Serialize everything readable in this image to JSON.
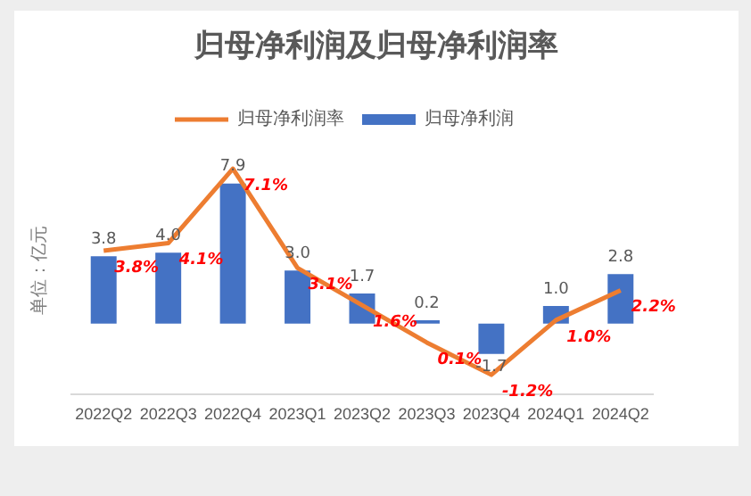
{
  "chart_data": {
    "type": "bar",
    "title": "归母净利润及归母净利润率",
    "ylabel": "单位：亿元",
    "categories": [
      "2022Q2",
      "2022Q3",
      "2022Q4",
      "2023Q1",
      "2023Q2",
      "2023Q3",
      "2023Q4",
      "2024Q1",
      "2024Q2"
    ],
    "series": [
      {
        "name": "归母净利润",
        "color": "#4472c4",
        "values": [
          3.8,
          4.0,
          7.9,
          3.0,
          1.7,
          0.2,
          -1.7,
          1.0,
          2.8
        ],
        "value_labels": [
          "3.8",
          "4.0",
          "7.9",
          "3.0",
          "1.7",
          "0.2",
          "-1.7",
          "1.0",
          "2.8"
        ]
      },
      {
        "name": "归母净利润率",
        "type": "line",
        "axis": "y2",
        "color": "#ed7d31",
        "values": [
          3.8,
          4.1,
          7.1,
          3.1,
          1.6,
          0.1,
          -1.2,
          1.0,
          2.2
        ],
        "value_labels": [
          "3.8%",
          "4.1%",
          "7.1%",
          "3.1%",
          "1.6%",
          "0.1%",
          "-1.2%",
          "1.0%",
          "2.2%"
        ]
      }
    ],
    "data_labels": true,
    "legend": "top",
    "grid": false,
    "tick_labels": "x",
    "marker": "none",
    "line_style": "solid"
  }
}
